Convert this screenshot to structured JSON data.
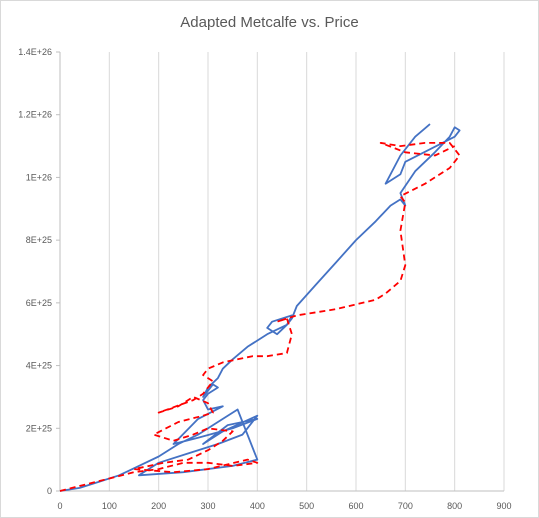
{
  "chart_data": {
    "type": "line",
    "title": "Adapted Metcalfe vs. Price",
    "xlabel": "",
    "ylabel": "",
    "xlim": [
      0,
      900
    ],
    "ylim": [
      0,
      1.4e+26
    ],
    "x_ticks": [
      0,
      100,
      200,
      300,
      400,
      500,
      600,
      700,
      800,
      900
    ],
    "x_tick_labels": [
      "0",
      "100",
      "200",
      "300",
      "400",
      "500",
      "600",
      "700",
      "800",
      "900"
    ],
    "y_ticks": [
      0,
      2e+25,
      4e+25,
      6e+25,
      8e+25,
      1e+26,
      1.2e+26,
      1.4e+26
    ],
    "y_tick_labels": [
      "0",
      "2E+25",
      "4E+25",
      "6E+25",
      "8E+25",
      "1E+26",
      "1.2E+26",
      "1.4E+26"
    ],
    "grid": "vertical",
    "legend": "none",
    "series": [
      {
        "style": "solid",
        "color": "#4472c4",
        "x": [
          0,
          40,
          80,
          120,
          160,
          200,
          240,
          280,
          320,
          360,
          400,
          350,
          250,
          160,
          200,
          260,
          320,
          370,
          400,
          330,
          290,
          340,
          400,
          350,
          280,
          230,
          280,
          330,
          300,
          290,
          300,
          320,
          310,
          300,
          290,
          300,
          320,
          330,
          350,
          380,
          420,
          460,
          470,
          430,
          420,
          440,
          460,
          470,
          480,
          520,
          560,
          600,
          640,
          670,
          690,
          700,
          690,
          720,
          760,
          790,
          800,
          810,
          800,
          700,
          690,
          660,
          690,
          720,
          750
        ],
        "y": [
          0,
          1e+24,
          3e+24,
          5e+24,
          8e+24,
          1.1e+25,
          1.5e+25,
          1.8e+25,
          2.2e+25,
          2.6e+25,
          1e+25,
          8e+24,
          6e+24,
          5e+24,
          9e+24,
          1.2e+25,
          1.5e+25,
          1.8e+25,
          2.4e+25,
          1.9e+25,
          1.5e+25,
          2.1e+25,
          2.3e+25,
          2e+25,
          1.7e+25,
          1.5e+25,
          2.3e+25,
          2.7e+25,
          2.6e+25,
          2.9e+25,
          3.1e+25,
          3.3e+25,
          3.4e+25,
          3.2e+25,
          3e+25,
          3.3e+25,
          3.6e+25,
          3.9e+25,
          4.2e+25,
          4.6e+25,
          5e+25,
          5.3e+25,
          5.6e+25,
          5.4e+25,
          5.2e+25,
          5e+25,
          5.3e+25,
          5.5e+25,
          5.9e+25,
          6.6e+25,
          7.3e+25,
          8e+25,
          8.6e+25,
          9.1e+25,
          9.3e+25,
          9.1e+25,
          9.5e+25,
          1.02e+26,
          1.08e+26,
          1.13e+26,
          1.16e+26,
          1.15e+26,
          1.13e+26,
          1.05e+26,
          1.01e+26,
          9.8e+25,
          1.07e+26,
          1.13e+26,
          1.17e+26
        ]
      },
      {
        "style": "dashed",
        "color": "#ff0000",
        "x": [
          0,
          50,
          100,
          150,
          200,
          250,
          300,
          350,
          400,
          380,
          300,
          230,
          150,
          210,
          260,
          300,
          330,
          350,
          300,
          270,
          230,
          190,
          240,
          290,
          310,
          300,
          270,
          240,
          200,
          270,
          290,
          300,
          310,
          290,
          300,
          330,
          360,
          390,
          420,
          460,
          470,
          460,
          440,
          460,
          480,
          560,
          640,
          660,
          690,
          700,
          690,
          700,
          690,
          740,
          790,
          810,
          790,
          740,
          690,
          650,
          700,
          760,
          800
        ],
        "y": [
          0,
          2e+24,
          4e+24,
          6e+24,
          7e+24,
          9e+24,
          9e+24,
          8e+24,
          9e+24,
          1e+25,
          7e+24,
          6e+24,
          7e+24,
          9e+24,
          1e+25,
          1.3e+25,
          1.6e+25,
          1.9e+25,
          2e+25,
          1.8e+25,
          1.6e+25,
          1.8e+25,
          2.2e+25,
          2.4e+25,
          2.5e+25,
          2.8e+25,
          3e+25,
          2.7e+25,
          2.5e+25,
          2.9e+25,
          3.1e+25,
          3.3e+25,
          3.5e+25,
          3.7e+25,
          3.9e+25,
          4.1e+25,
          4.2e+25,
          4.3e+25,
          4.3e+25,
          4.4e+25,
          5e+25,
          5.5e+25,
          5.4e+25,
          5.5e+25,
          5.6e+25,
          5.8e+25,
          6.1e+25,
          6.3e+25,
          6.7e+25,
          7.2e+25,
          8.3e+25,
          9.2e+25,
          9.4e+25,
          9.8e+25,
          1.03e+26,
          1.07e+26,
          1.11e+26,
          1.11e+26,
          1.1e+26,
          1.11e+26,
          1.08e+26,
          1.07e+26,
          1.1e+26
        ]
      }
    ]
  }
}
